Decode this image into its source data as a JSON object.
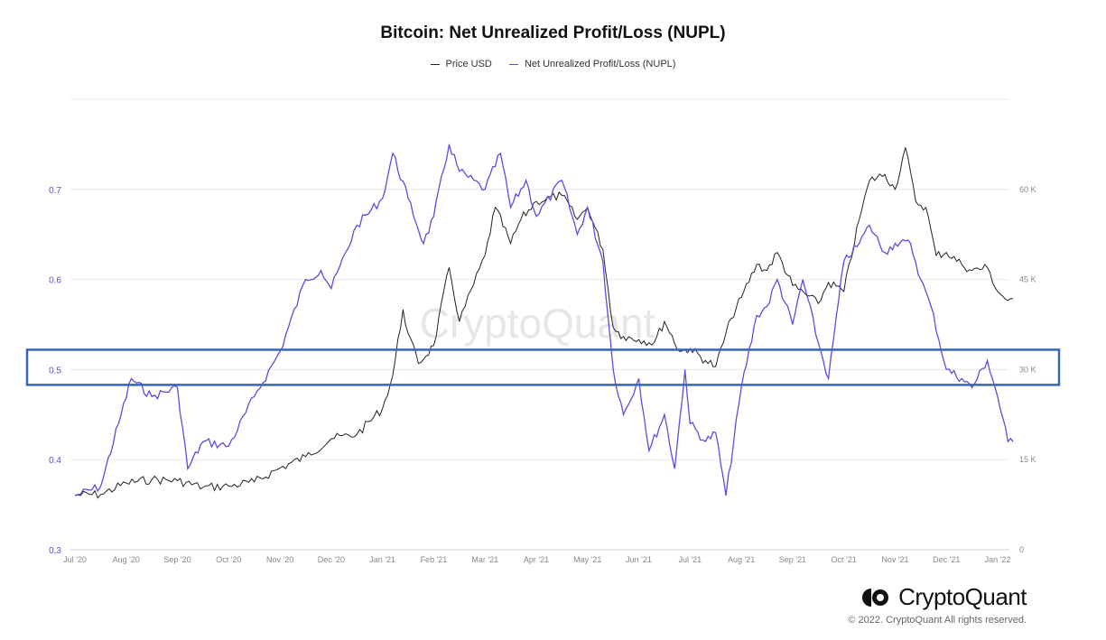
{
  "chart_data": {
    "type": "line",
    "title": "Bitcoin: Net Unrealized Profit/Loss (NUPL)",
    "legend": [
      {
        "name": "Price USD",
        "color": "#222222"
      },
      {
        "name": "Net Unrealized Profit/Loss (NUPL)",
        "color": "#5b4de0"
      }
    ],
    "x_ticks": [
      "Jul '20",
      "Aug '20",
      "Sep '20",
      "Oct '20",
      "Nov '20",
      "Dec '20",
      "Jan '21",
      "Feb '21",
      "Mar '21",
      "Apr '21",
      "May '21",
      "Jun '21",
      "Jul '21",
      "Aug '21",
      "Sep '21",
      "Oct '21",
      "Nov '21",
      "Dec '21",
      "Jan '22"
    ],
    "y_left": {
      "min": 0.3,
      "max": 0.8,
      "ticks": [
        "0.3",
        "0.4",
        "0.5",
        "0.6",
        "0.7"
      ]
    },
    "y_right": {
      "min": 0,
      "max": 75000,
      "ticks": [
        "0",
        "15 K",
        "30 K",
        "45 K",
        "60 K"
      ]
    },
    "grid": true,
    "series": [
      {
        "name": "Price USD",
        "axis": "right",
        "points": [
          [
            0,
            9100
          ],
          [
            0.5,
            9200
          ],
          [
            1,
            11100
          ],
          [
            1.5,
            11700
          ],
          [
            2,
            11500
          ],
          [
            2.5,
            10400
          ],
          [
            3,
            10600
          ],
          [
            3.5,
            11300
          ],
          [
            4,
            13600
          ],
          [
            4.5,
            15500
          ],
          [
            5,
            18500
          ],
          [
            5.5,
            19200
          ],
          [
            6,
            23500
          ],
          [
            6.2,
            29000
          ],
          [
            6.4,
            40000
          ],
          [
            6.5,
            36000
          ],
          [
            6.7,
            31000
          ],
          [
            7,
            34000
          ],
          [
            7.3,
            47000
          ],
          [
            7.5,
            38000
          ],
          [
            8,
            49000
          ],
          [
            8.2,
            57000
          ],
          [
            8.5,
            51000
          ],
          [
            8.7,
            55000
          ],
          [
            9,
            58000
          ],
          [
            9.5,
            59000
          ],
          [
            9.8,
            55000
          ],
          [
            10,
            57000
          ],
          [
            10.3,
            50000
          ],
          [
            10.5,
            37000
          ],
          [
            10.7,
            35500
          ],
          [
            11,
            35000
          ],
          [
            11.3,
            34500
          ],
          [
            11.5,
            38000
          ],
          [
            11.8,
            33000
          ],
          [
            12,
            33500
          ],
          [
            12.3,
            31500
          ],
          [
            12.5,
            30500
          ],
          [
            12.8,
            38500
          ],
          [
            13,
            42000
          ],
          [
            13.3,
            47500
          ],
          [
            13.5,
            46500
          ],
          [
            13.7,
            49500
          ],
          [
            14,
            44000
          ],
          [
            14.5,
            41000
          ],
          [
            14.7,
            44500
          ],
          [
            15,
            43000
          ],
          [
            15.3,
            55000
          ],
          [
            15.5,
            61500
          ],
          [
            15.8,
            62500
          ],
          [
            16,
            60000
          ],
          [
            16.2,
            67000
          ],
          [
            16.4,
            58000
          ],
          [
            16.6,
            57000
          ],
          [
            16.8,
            49000
          ],
          [
            17,
            49500
          ],
          [
            17.3,
            47500
          ],
          [
            17.5,
            46500
          ],
          [
            17.8,
            47000
          ],
          [
            18,
            43000
          ],
          [
            18.2,
            41500
          ],
          [
            18.3,
            41800
          ]
        ]
      },
      {
        "name": "Net Unrealized Profit/Loss (NUPL)",
        "axis": "left",
        "points": [
          [
            0,
            0.36
          ],
          [
            0.5,
            0.37
          ],
          [
            0.9,
            0.45
          ],
          [
            1.1,
            0.49
          ],
          [
            1.5,
            0.47
          ],
          [
            2,
            0.48
          ],
          [
            2.2,
            0.39
          ],
          [
            2.5,
            0.42
          ],
          [
            3,
            0.415
          ],
          [
            3.5,
            0.47
          ],
          [
            4,
            0.52
          ],
          [
            4.5,
            0.6
          ],
          [
            4.8,
            0.61
          ],
          [
            5,
            0.59
          ],
          [
            5.5,
            0.66
          ],
          [
            6,
            0.69
          ],
          [
            6.2,
            0.74
          ],
          [
            6.5,
            0.69
          ],
          [
            6.8,
            0.64
          ],
          [
            7,
            0.67
          ],
          [
            7.3,
            0.75
          ],
          [
            7.5,
            0.72
          ],
          [
            8,
            0.7
          ],
          [
            8.3,
            0.74
          ],
          [
            8.5,
            0.68
          ],
          [
            8.8,
            0.71
          ],
          [
            9,
            0.67
          ],
          [
            9.5,
            0.71
          ],
          [
            9.8,
            0.65
          ],
          [
            10,
            0.68
          ],
          [
            10.3,
            0.62
          ],
          [
            10.5,
            0.5
          ],
          [
            10.7,
            0.45
          ],
          [
            11,
            0.49
          ],
          [
            11.2,
            0.41
          ],
          [
            11.5,
            0.45
          ],
          [
            11.7,
            0.39
          ],
          [
            11.9,
            0.5
          ],
          [
            12,
            0.44
          ],
          [
            12.3,
            0.42
          ],
          [
            12.5,
            0.43
          ],
          [
            12.7,
            0.36
          ],
          [
            13,
            0.48
          ],
          [
            13.3,
            0.56
          ],
          [
            13.5,
            0.57
          ],
          [
            13.7,
            0.6
          ],
          [
            14,
            0.55
          ],
          [
            14.2,
            0.6
          ],
          [
            14.5,
            0.53
          ],
          [
            14.7,
            0.49
          ],
          [
            15,
            0.62
          ],
          [
            15.3,
            0.64
          ],
          [
            15.5,
            0.66
          ],
          [
            15.8,
            0.63
          ],
          [
            16,
            0.64
          ],
          [
            16.3,
            0.64
          ],
          [
            16.5,
            0.6
          ],
          [
            16.7,
            0.57
          ],
          [
            17,
            0.5
          ],
          [
            17.3,
            0.49
          ],
          [
            17.5,
            0.48
          ],
          [
            17.8,
            0.51
          ],
          [
            18,
            0.47
          ],
          [
            18.2,
            0.42
          ],
          [
            18.3,
            0.42
          ]
        ]
      }
    ],
    "annotation": {
      "type": "highlight-band",
      "left_value_from": 0.483,
      "left_value_to": 0.522,
      "color": "#3a65b5"
    }
  },
  "watermark": "CryptoQuant",
  "brand": "CryptoQuant",
  "copyright": "© 2022. CryptoQuant All rights reserved."
}
